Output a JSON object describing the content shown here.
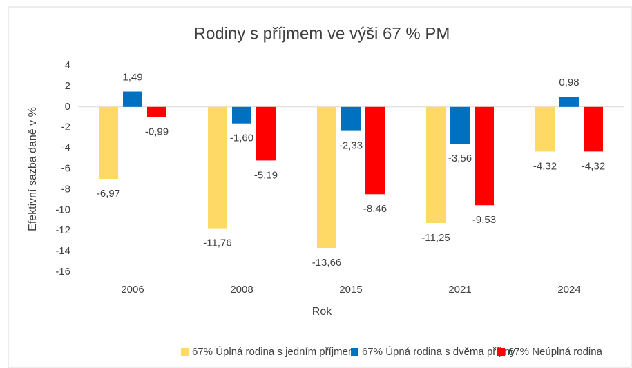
{
  "chart_data": {
    "type": "bar",
    "title": "Rodiny s příjmem ve výši 67 % PM",
    "x_label": "Rok",
    "y_label": "Efektivní sazba daně  v %",
    "categories": [
      "2006",
      "2008",
      "2015",
      "2021",
      "2024"
    ],
    "series": [
      {
        "name": "67% Úplná rodina s jedním příjmem",
        "color": "#ffd966",
        "values": [
          -6.97,
          -11.76,
          -13.66,
          -11.25,
          -4.32
        ],
        "value_labels": [
          "-6,97",
          "-11,76",
          "-13,66",
          "-11,25",
          "-4,32"
        ]
      },
      {
        "name": "67% Úpná rodina s dvěma příjmy",
        "color": "#0070c0",
        "values": [
          1.49,
          -1.6,
          -2.33,
          -3.56,
          0.98
        ],
        "value_labels": [
          "1,49",
          "-1,60",
          "-2,33",
          "-3,56",
          "0,98"
        ]
      },
      {
        "name": "67% Neúplná rodina",
        "color": "#ff0000",
        "values": [
          -0.99,
          -5.19,
          -8.46,
          -9.53,
          -4.32
        ],
        "value_labels": [
          "-0,99",
          "-5,19",
          "-8,46",
          "-9,53",
          "-4,32"
        ]
      }
    ],
    "ylim": [
      -16,
      4
    ],
    "yticks": [
      -16,
      -14,
      -12,
      -10,
      -8,
      -6,
      -4,
      -2,
      0,
      2,
      4
    ],
    "grid": false,
    "legend": "bottom"
  }
}
